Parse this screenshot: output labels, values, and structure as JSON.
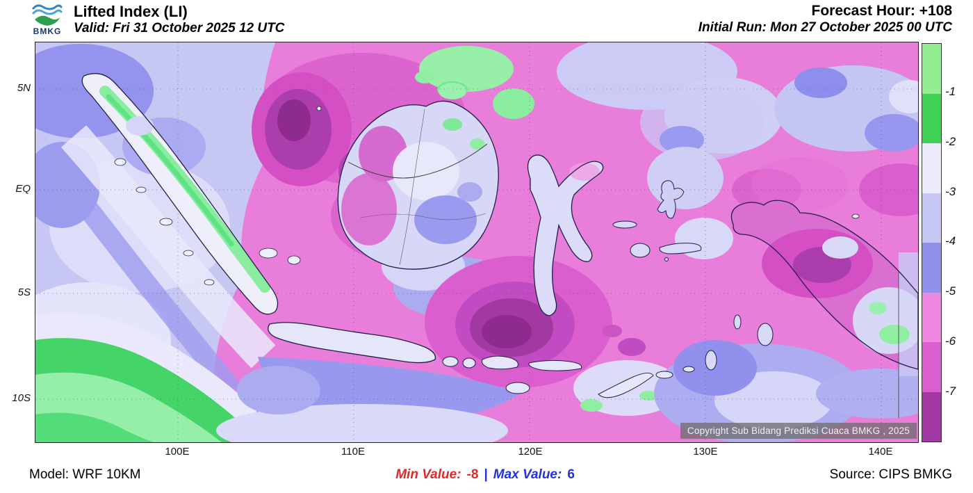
{
  "header": {
    "logo_label": "BMKG",
    "title": "Lifted Index (LI)",
    "valid_line": "Valid: Fri 31 October 2025 12 UTC",
    "forecast_hour": "Forecast Hour: +108",
    "initial_run": "Initial Run: Mon 27 October 2025 00 UTC"
  },
  "map": {
    "y_axis_labels": [
      "5N",
      "EQ",
      "5S",
      "10S"
    ],
    "x_axis_labels": [
      "100E",
      "110E",
      "120E",
      "130E",
      "140E"
    ],
    "copyright": "Copyright Sub Bidang Prediksi Cuaca BMKG , 2025"
  },
  "colorbar": {
    "tick_labels": [
      "-1",
      "-2",
      "-3",
      "-4",
      "-5",
      "-6",
      "-7"
    ],
    "colors": [
      "#93EE93",
      "#41D155",
      "#ECECFB",
      "#C7C7F4",
      "#9191EC",
      "#EE87DF",
      "#DB5ECE",
      "#A238A2"
    ]
  },
  "footer": {
    "model": "Model: WRF 10KM",
    "min_label": "Min Value:",
    "min_value": "-8",
    "separator": "|",
    "max_label": "Max Value:",
    "max_value": "6",
    "source": "Source: CIPS BMKG"
  },
  "chart_data": {
    "type": "heatmap",
    "title": "Lifted Index (LI)",
    "valid_time": "Fri 31 October 2025 12 UTC",
    "forecast_hour": "+108",
    "initial_run": "Mon 27 October 2025 00 UTC",
    "model": "WRF 10KM",
    "source": "CIPS BMKG",
    "min_value": -8,
    "max_value": 6,
    "colorbar_levels": [
      -1,
      -2,
      -3,
      -4,
      -5,
      -6,
      -7
    ],
    "x_ticks": [
      "100E",
      "110E",
      "120E",
      "130E",
      "140E"
    ],
    "y_ticks": [
      "5N",
      "EQ",
      "5S",
      "10S"
    ]
  }
}
